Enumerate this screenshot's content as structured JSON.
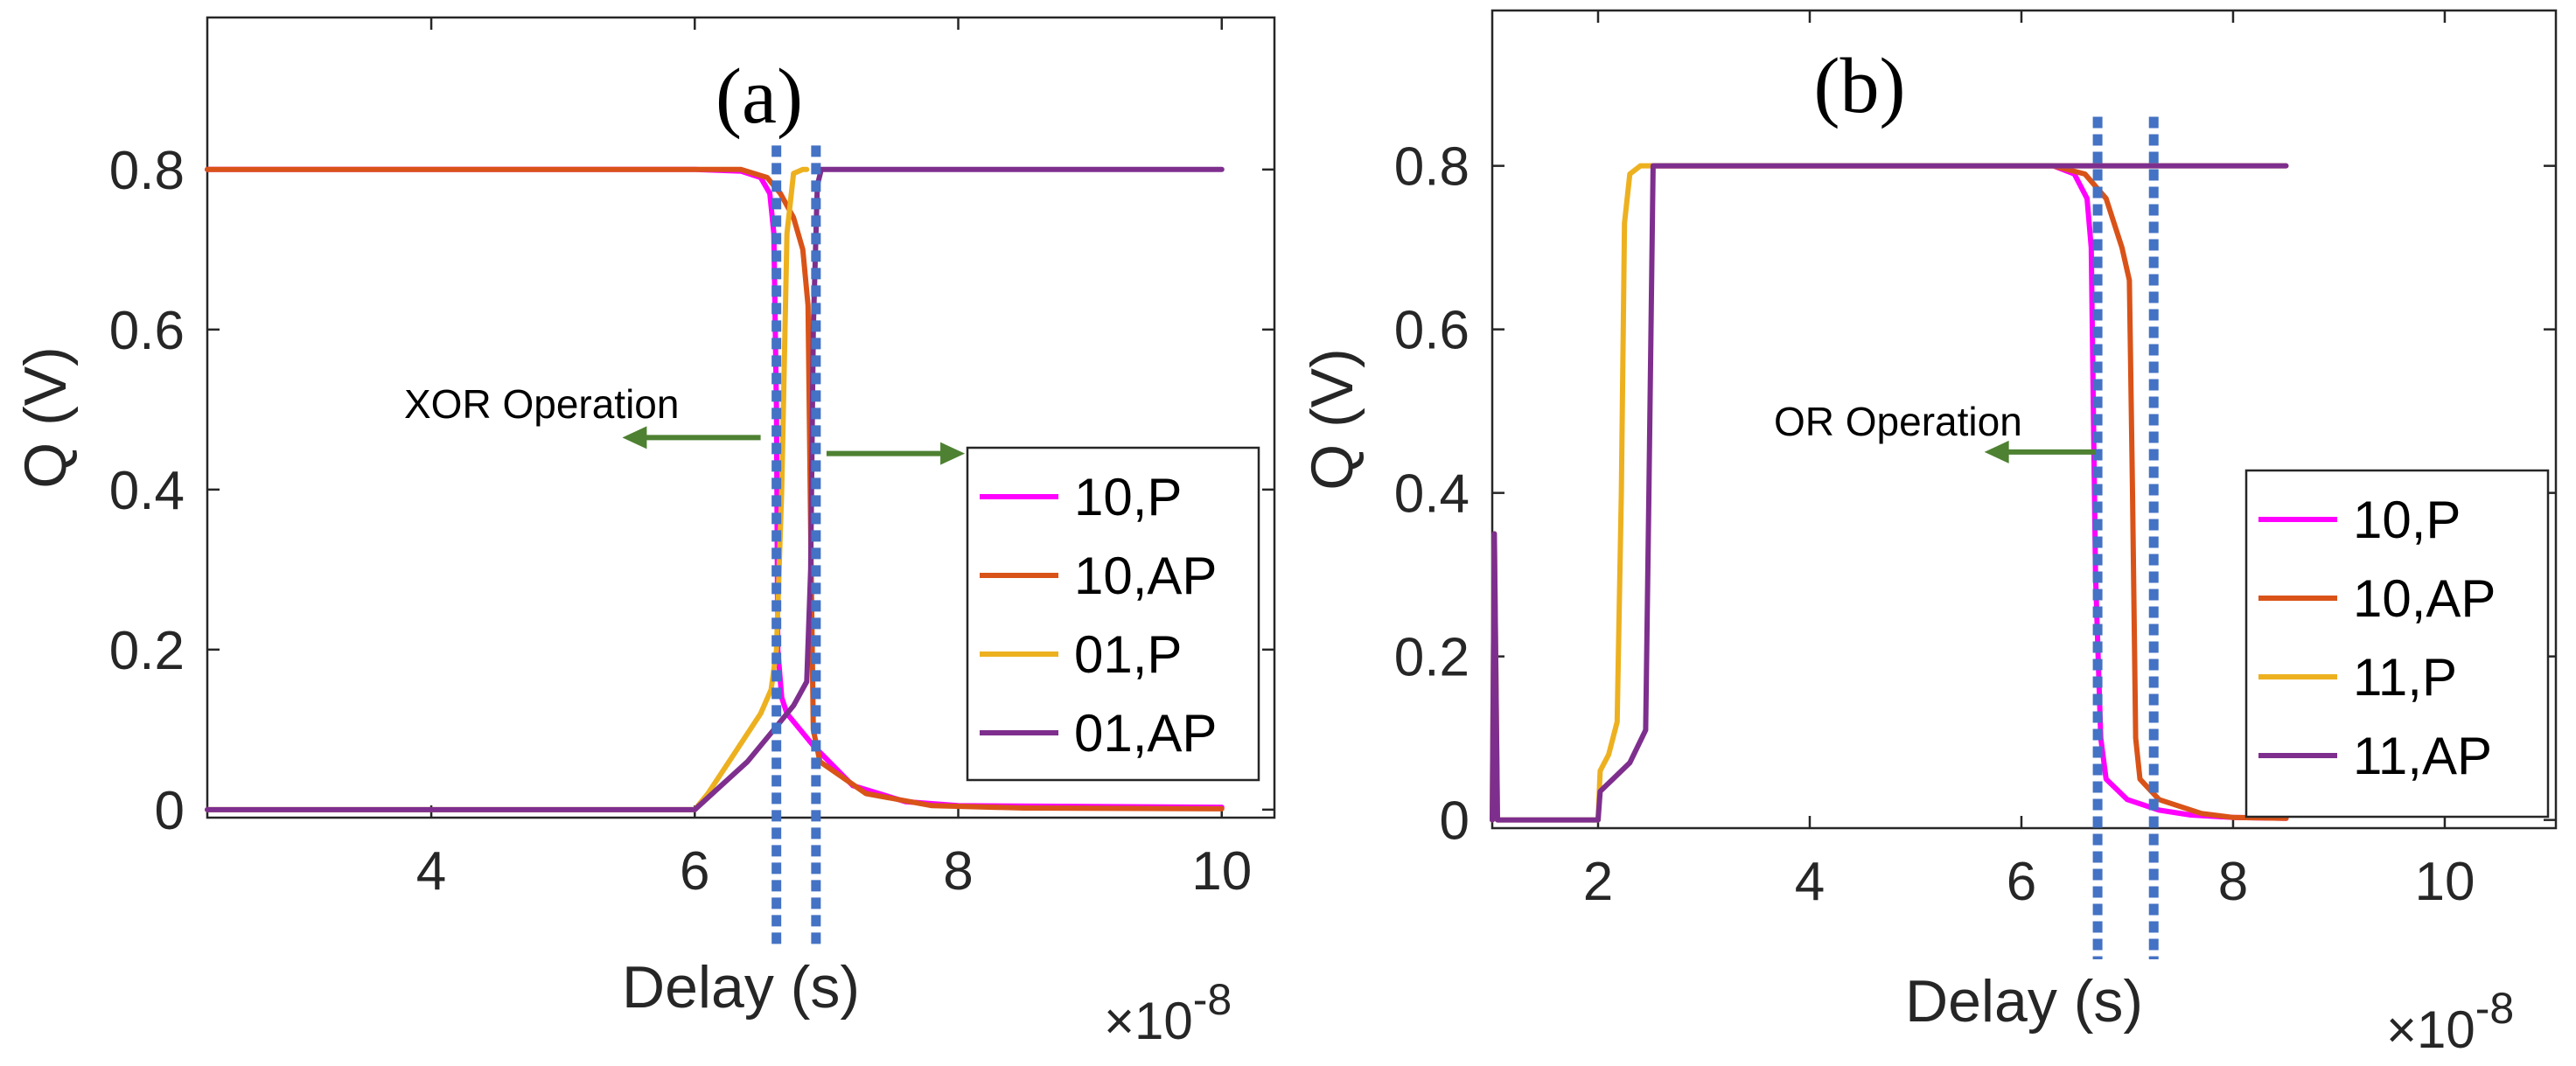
{
  "chart_data": [
    {
      "type": "line",
      "panel_label": "(a)",
      "xlabel": "Delay (s)",
      "ylabel": "Q (V)",
      "x_exponent": "×10",
      "x_exponent_power": "-8",
      "xlim": [
        2.3,
        10.4
      ],
      "ylim": [
        -0.01,
        0.99
      ],
      "xticks": [
        4,
        6,
        8,
        10
      ],
      "xtick_labels": [
        "4",
        "6",
        "8",
        "10"
      ],
      "yticks": [
        0,
        0.2,
        0.4,
        0.6,
        0.8
      ],
      "ytick_labels": [
        "0",
        "0.2",
        "0.4",
        "0.6",
        "0.8"
      ],
      "annotation": "XOR Operation",
      "arrow_color": "#4E8132",
      "guide_color": "#4472C4",
      "guide_lines_x": [
        6.62,
        6.92
      ],
      "guide_line_y_top": 0.83,
      "arrows": [
        {
          "direction": "left",
          "y": 0.465,
          "x_from": 6.5,
          "x_to": 5.45
        },
        {
          "direction": "right",
          "y": 0.445,
          "x_from": 7.0,
          "x_to": 8.05
        }
      ],
      "legend": [
        "10,P",
        "10,AP",
        "01,P",
        "01,AP"
      ],
      "series": [
        {
          "name": "10,P",
          "color": "#FF00FF",
          "x": [
            2.3,
            6.0,
            6.35,
            6.5,
            6.57,
            6.6,
            6.62,
            6.63,
            6.66,
            6.7,
            6.9,
            7.2,
            7.6,
            8.0,
            10.0
          ],
          "y": [
            0.8,
            0.8,
            0.798,
            0.79,
            0.77,
            0.72,
            0.5,
            0.2,
            0.14,
            0.12,
            0.08,
            0.03,
            0.01,
            0.005,
            0.003
          ]
        },
        {
          "name": "10,AP",
          "color": "#D95319",
          "x": [
            2.3,
            6.0,
            6.35,
            6.55,
            6.65,
            6.75,
            6.82,
            6.86,
            6.88,
            6.9,
            6.95,
            7.3,
            7.8,
            8.5,
            10.0
          ],
          "y": [
            0.8,
            0.8,
            0.8,
            0.79,
            0.77,
            0.74,
            0.7,
            0.63,
            0.35,
            0.1,
            0.06,
            0.02,
            0.005,
            0.002,
            0.001
          ]
        },
        {
          "name": "01,P",
          "color": "#EDB120",
          "x": [
            2.3,
            6.0,
            6.1,
            6.3,
            6.5,
            6.58,
            6.62,
            6.66,
            6.7,
            6.75,
            6.82,
            6.85
          ],
          "y": [
            0.0,
            0.0,
            0.02,
            0.07,
            0.12,
            0.15,
            0.2,
            0.4,
            0.72,
            0.795,
            0.8,
            0.8
          ]
        },
        {
          "name": "01,AP",
          "color": "#7E2F8E",
          "x": [
            2.3,
            6.0,
            6.2,
            6.4,
            6.6,
            6.75,
            6.85,
            6.88,
            6.9,
            6.93,
            6.96,
            7.1,
            10.0
          ],
          "y": [
            0.0,
            0.0,
            0.03,
            0.06,
            0.1,
            0.13,
            0.16,
            0.3,
            0.6,
            0.78,
            0.8,
            0.8,
            0.8
          ]
        }
      ]
    },
    {
      "type": "line",
      "panel_label": "(b)",
      "xlabel": "Delay (s)",
      "ylabel": "Q (V)",
      "x_exponent": "×10",
      "x_exponent_power": "-8",
      "xlim": [
        1.0,
        11.05
      ],
      "ylim": [
        -0.01,
        0.99
      ],
      "xticks": [
        2,
        4,
        6,
        8,
        10
      ],
      "xtick_labels": [
        "2",
        "4",
        "6",
        "8",
        "10"
      ],
      "yticks": [
        0,
        0.2,
        0.4,
        0.6,
        0.8
      ],
      "ytick_labels": [
        "0",
        "0.2",
        "0.4",
        "0.6",
        "0.8"
      ],
      "annotation": "OR Operation",
      "arrow_color": "#4E8132",
      "guide_color": "#4472C4",
      "guide_lines_x": [
        6.72,
        7.25
      ],
      "guide_line_y_top": 0.86,
      "arrows": [
        {
          "direction": "left",
          "y": 0.45,
          "x_from": 6.7,
          "x_to": 5.65
        }
      ],
      "legend": [
        "10,P",
        "10,AP",
        "11,P",
        "11,AP"
      ],
      "series": [
        {
          "name": "10,P",
          "color": "#FF00FF",
          "x": [
            2.5,
            6.3,
            6.5,
            6.62,
            6.66,
            6.7,
            6.75,
            6.8,
            7.0,
            7.3,
            7.6,
            8.0,
            8.5
          ],
          "y": [
            0.8,
            0.8,
            0.79,
            0.76,
            0.7,
            0.3,
            0.1,
            0.05,
            0.025,
            0.012,
            0.006,
            0.003,
            0.002
          ]
        },
        {
          "name": "10,AP",
          "color": "#D95319",
          "x": [
            2.5,
            6.3,
            6.6,
            6.8,
            6.95,
            7.02,
            7.05,
            7.08,
            7.12,
            7.3,
            7.7,
            8.0,
            8.5
          ],
          "y": [
            0.8,
            0.8,
            0.79,
            0.76,
            0.7,
            0.66,
            0.4,
            0.1,
            0.05,
            0.025,
            0.008,
            0.003,
            0.002
          ]
        },
        {
          "name": "11,P",
          "color": "#EDB120",
          "x": [
            1.0,
            1.02,
            1.05,
            2.0,
            2.02,
            2.1,
            2.18,
            2.22,
            2.25,
            2.3,
            2.4,
            2.5,
            8.5
          ],
          "y": [
            0.0,
            0.35,
            0.0,
            0.0,
            0.06,
            0.08,
            0.12,
            0.4,
            0.73,
            0.79,
            0.8,
            0.8,
            0.8
          ]
        },
        {
          "name": "11,AP",
          "color": "#7E2F8E",
          "x": [
            1.0,
            1.02,
            1.05,
            2.0,
            2.02,
            2.1,
            2.3,
            2.45,
            2.48,
            2.52,
            2.6,
            8.5
          ],
          "y": [
            0.0,
            0.35,
            0.0,
            0.0,
            0.035,
            0.045,
            0.07,
            0.11,
            0.4,
            0.8,
            0.8,
            0.8
          ]
        }
      ]
    }
  ]
}
